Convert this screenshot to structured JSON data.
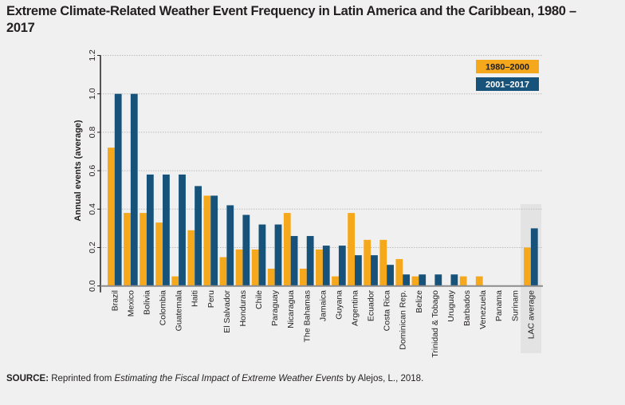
{
  "title": "Extreme Climate-Related Weather Event Frequency in Latin America and the Caribbean, 1980 – 2017",
  "source": {
    "label": "SOURCE:",
    "prefix": " Reprinted from ",
    "work": "Estimating the Fiscal Impact of Extreme Weather Events",
    "suffix": " by Alejos, L., 2018."
  },
  "colors": {
    "series_1980_2000": "#f6a81c",
    "series_2001_2017": "#16527a",
    "highlight": "#e2e3e2",
    "grid": "#bdbdbd",
    "axis": "#231f20"
  },
  "chart_data": {
    "type": "bar",
    "title": "Extreme Climate-Related Weather Event Frequency in Latin America and the Caribbean, 1980 – 2017",
    "xlabel": "",
    "ylabel": "Annual events (average)",
    "ylim": [
      0,
      1.2
    ],
    "yticks": [
      "0.0",
      "0.2",
      "0.4",
      "0.6",
      "0.8",
      "1.0",
      "1.2"
    ],
    "grid": true,
    "legend_position": "top-right",
    "highlighted_category": "LAC average",
    "categories": [
      "Brazil",
      "Mexico",
      "Bolivia",
      "Colombia",
      "Guatemala",
      "Haiti",
      "Peru",
      "El Salvador",
      "Honduras",
      "Chile",
      "Paraguay",
      "Nicaragua",
      "The Bahamas",
      "Jamaica",
      "Guyana",
      "Argentina",
      "Ecuador",
      "Costa Rica",
      "Dominican Rep.",
      "Belize",
      "Trinidad & Tobago",
      "Uruguay",
      "Barbados",
      "Venezuela",
      "Panama",
      "Surinam",
      "LAC average"
    ],
    "series": [
      {
        "name": "1980–2000",
        "values": [
          0.72,
          0.38,
          0.38,
          0.33,
          0.05,
          0.29,
          0.47,
          0.15,
          0.19,
          0.19,
          0.09,
          0.38,
          0.09,
          0.19,
          0.05,
          0.38,
          0.24,
          0.24,
          0.14,
          0.05,
          0,
          0,
          0.05,
          0.05,
          0,
          0,
          0.2
        ]
      },
      {
        "name": "2001–2017",
        "values": [
          1.0,
          1.0,
          0.58,
          0.58,
          0.58,
          0.52,
          0.47,
          0.42,
          0.37,
          0.32,
          0.32,
          0.26,
          0.26,
          0.21,
          0.21,
          0.16,
          0.16,
          0.11,
          0.06,
          0.06,
          0.06,
          0.06,
          0,
          0,
          0,
          0,
          0.3
        ]
      }
    ]
  }
}
